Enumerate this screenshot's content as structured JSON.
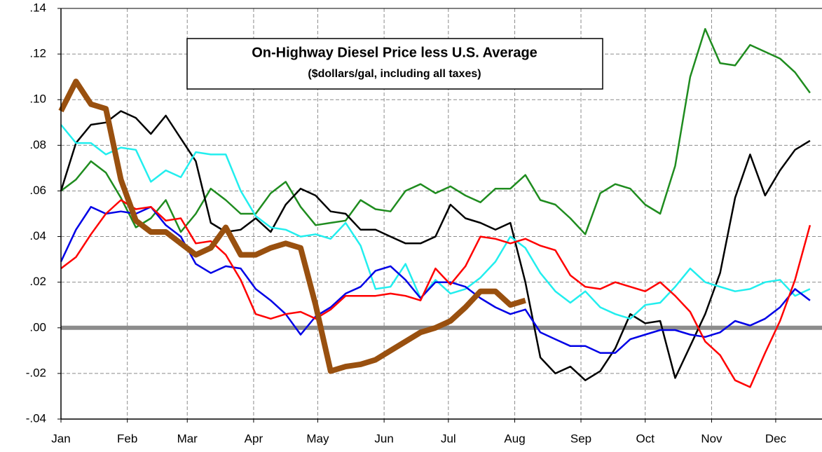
{
  "chart_data": {
    "type": "line",
    "title": "On-Highway Diesel Price  less U.S. Average",
    "subtitle": "($dollars/gal, including all taxes)",
    "x": [
      0,
      1,
      2,
      3,
      4,
      5,
      6,
      7,
      8,
      9,
      10,
      11,
      12,
      13,
      14,
      15,
      16,
      17,
      18,
      19,
      20,
      21,
      22,
      23,
      24,
      25,
      26,
      27,
      28,
      29,
      30,
      31,
      32,
      33,
      34,
      35,
      36,
      37,
      38,
      39,
      40,
      41,
      42,
      43,
      44,
      45,
      46,
      47,
      48,
      49,
      50
    ],
    "xlim": [
      0,
      50.8
    ],
    "xticks": [
      {
        "value": 0,
        "label": "Jan"
      },
      {
        "value": 4.43,
        "label": "Feb"
      },
      {
        "value": 8.43,
        "label": "Mar"
      },
      {
        "value": 12.86,
        "label": "Apr"
      },
      {
        "value": 17.14,
        "label": "May"
      },
      {
        "value": 21.57,
        "label": "Jun"
      },
      {
        "value": 25.86,
        "label": "Jul"
      },
      {
        "value": 30.29,
        "label": "Aug"
      },
      {
        "value": 34.71,
        "label": "Sep"
      },
      {
        "value": 39,
        "label": "Oct"
      },
      {
        "value": 43.43,
        "label": "Nov"
      },
      {
        "value": 47.71,
        "label": "Dec"
      }
    ],
    "ylim": [
      -0.04,
      0.14
    ],
    "yticks": [
      {
        "value": -0.04,
        "label": "-.04"
      },
      {
        "value": -0.02,
        "label": "-.02"
      },
      {
        "value": 0,
        "label": ".00"
      },
      {
        "value": 0.02,
        "label": ".02"
      },
      {
        "value": 0.04,
        "label": ".04"
      },
      {
        "value": 0.06,
        "label": ".06"
      },
      {
        "value": 0.08,
        "label": ".08"
      },
      {
        "value": 0.1,
        "label": ".10"
      },
      {
        "value": 0.12,
        "label": ".12"
      },
      {
        "value": 0.14,
        "label": ".14"
      }
    ],
    "grid": true,
    "series": [
      {
        "color": "#1f8c1f",
        "values": [
          0.06,
          0.065,
          0.073,
          0.068,
          0.057,
          0.044,
          0.048,
          0.056,
          0.042,
          0.05,
          0.061,
          0.056,
          0.05,
          0.05,
          0.059,
          0.064,
          0.053,
          0.045,
          0.046,
          0.047,
          0.056,
          0.052,
          0.051,
          0.06,
          0.063,
          0.059,
          0.062,
          0.058,
          0.055,
          0.061,
          0.061,
          0.067,
          0.056,
          0.054,
          0.048,
          0.041,
          0.059,
          0.063,
          0.061,
          0.054,
          0.05,
          0.071,
          0.11,
          0.131,
          0.116,
          0.115,
          0.124,
          0.121,
          0.118,
          0.112,
          0.103
        ]
      },
      {
        "color": "#000000",
        "values": [
          0.06,
          0.081,
          0.089,
          0.09,
          0.095,
          0.092,
          0.085,
          0.093,
          0.083,
          0.073,
          0.046,
          0.042,
          0.043,
          0.048,
          0.042,
          0.054,
          0.061,
          0.058,
          0.051,
          0.05,
          0.043,
          0.043,
          0.04,
          0.037,
          0.037,
          0.04,
          0.054,
          0.048,
          0.046,
          0.043,
          0.046,
          0.02,
          -0.013,
          -0.02,
          -0.017,
          -0.023,
          -0.019,
          -0.009,
          0.006,
          0.002,
          0.003,
          -0.022,
          -0.008,
          0.006,
          0.024,
          0.057,
          0.076,
          0.058,
          0.069,
          0.078,
          0.082
        ]
      },
      {
        "color": "#22eeee",
        "values": [
          0.089,
          0.081,
          0.081,
          0.076,
          0.079,
          0.078,
          0.064,
          0.069,
          0.066,
          0.077,
          0.076,
          0.076,
          0.06,
          0.049,
          0.044,
          0.043,
          0.04,
          0.041,
          0.039,
          0.046,
          0.036,
          0.017,
          0.018,
          0.028,
          0.013,
          0.021,
          0.015,
          0.017,
          0.022,
          0.029,
          0.04,
          0.035,
          0.024,
          0.016,
          0.011,
          0.016,
          0.009,
          0.006,
          0.004,
          0.01,
          0.011,
          0.018,
          0.026,
          0.02,
          0.018,
          0.016,
          0.017,
          0.02,
          0.021,
          0.014,
          0.017
        ]
      },
      {
        "color": "#0000e6",
        "values": [
          0.029,
          0.043,
          0.053,
          0.05,
          0.051,
          0.05,
          0.053,
          0.045,
          0.04,
          0.028,
          0.024,
          0.027,
          0.026,
          0.017,
          0.012,
          0.006,
          -0.003,
          0.005,
          0.009,
          0.015,
          0.018,
          0.025,
          0.027,
          0.021,
          0.013,
          0.02,
          0.02,
          0.018,
          0.013,
          0.009,
          0.006,
          0.008,
          -0.002,
          -0.005,
          -0.008,
          -0.008,
          -0.011,
          -0.011,
          -0.005,
          -0.003,
          -0.001,
          -0.001,
          -0.003,
          -0.004,
          -0.002,
          0.003,
          0.001,
          0.004,
          0.009,
          0.017,
          0.012
        ]
      },
      {
        "color": "#ff0000",
        "values": [
          0.026,
          0.031,
          0.041,
          0.05,
          0.056,
          0.052,
          0.053,
          0.047,
          0.048,
          0.037,
          0.038,
          0.032,
          0.021,
          0.006,
          0.004,
          0.006,
          0.007,
          0.004,
          0.008,
          0.014,
          0.014,
          0.014,
          0.015,
          0.014,
          0.012,
          0.026,
          0.019,
          0.027,
          0.04,
          0.039,
          0.037,
          0.039,
          0.036,
          0.034,
          0.023,
          0.018,
          0.017,
          0.02,
          0.018,
          0.016,
          0.02,
          0.014,
          0.007,
          -0.006,
          -0.012,
          -0.023,
          -0.026,
          -0.011,
          0.003,
          0.021,
          0.045
        ]
      },
      {
        "color": "#99500f",
        "values": [
          0.095,
          0.108,
          0.098,
          0.096,
          0.065,
          0.047,
          0.042,
          0.042,
          0.037,
          0.032,
          0.035,
          0.044,
          0.032,
          0.032,
          0.035,
          0.037,
          0.035,
          0.01,
          -0.019,
          -0.017,
          -0.016,
          -0.014,
          -0.01,
          -0.006,
          -0.002,
          0.0,
          0.003,
          0.009,
          0.016,
          0.016,
          0.01,
          0.012,
          null,
          null,
          null,
          null,
          null,
          null,
          null,
          null,
          null,
          null,
          null,
          null,
          null,
          null,
          null,
          null,
          null,
          null,
          null
        ]
      }
    ]
  }
}
